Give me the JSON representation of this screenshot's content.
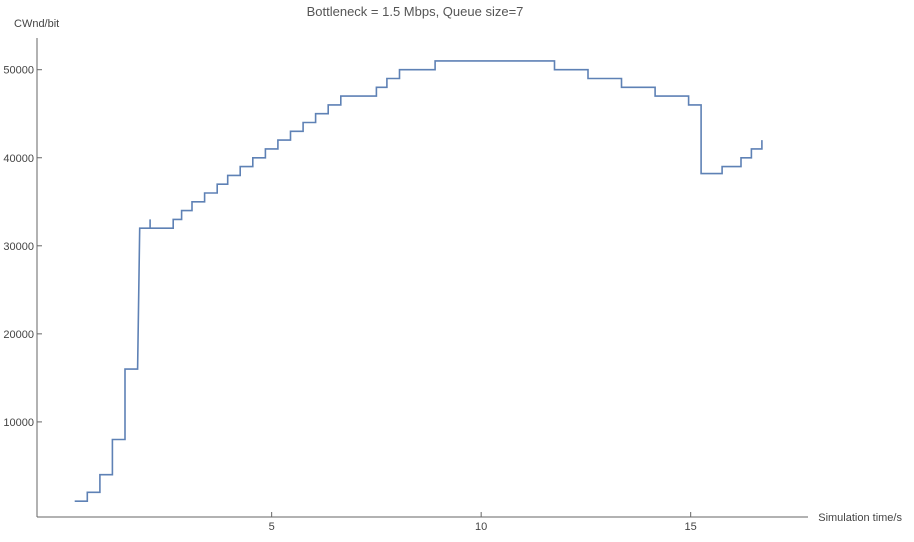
{
  "chart_data": {
    "type": "line",
    "title": "Bottleneck = 1.5 Mbps, Queue size=7",
    "xlabel": "Simulation time/s",
    "ylabel": "CWnd/bit",
    "xlim": [
      -0.6,
      17.8
    ],
    "ylim": [
      -800,
      53600
    ],
    "x_ticks": [
      5,
      10,
      15
    ],
    "y_ticks": [
      10000,
      20000,
      30000,
      40000,
      50000
    ],
    "x_tick_labels": [
      "5",
      "10",
      "15"
    ],
    "y_tick_labels": [
      "10000",
      "20000",
      "30000",
      "40000",
      "50000"
    ],
    "grid": false,
    "line_style": "step",
    "series": [
      {
        "color": "#5e81b5",
        "points": [
          [
            0.3,
            1000
          ],
          [
            0.6,
            1000
          ],
          [
            0.6,
            2000
          ],
          [
            0.9,
            2000
          ],
          [
            0.9,
            4000
          ],
          [
            1.2,
            4000
          ],
          [
            1.2,
            8000
          ],
          [
            1.5,
            8000
          ],
          [
            1.5,
            16000
          ],
          [
            1.8,
            16000
          ],
          [
            1.85,
            32000
          ],
          [
            2.1,
            32000
          ],
          [
            2.1,
            33000
          ],
          [
            2.1,
            32000
          ],
          [
            2.65,
            32000
          ],
          [
            2.65,
            33000
          ],
          [
            2.85,
            33000
          ],
          [
            2.85,
            34000
          ],
          [
            3.1,
            34000
          ],
          [
            3.1,
            35000
          ],
          [
            3.4,
            35000
          ],
          [
            3.4,
            36000
          ],
          [
            3.7,
            36000
          ],
          [
            3.7,
            37000
          ],
          [
            3.95,
            37000
          ],
          [
            3.95,
            38000
          ],
          [
            4.25,
            38000
          ],
          [
            4.25,
            39000
          ],
          [
            4.55,
            39000
          ],
          [
            4.55,
            40000
          ],
          [
            4.85,
            40000
          ],
          [
            4.85,
            41000
          ],
          [
            5.15,
            41000
          ],
          [
            5.15,
            42000
          ],
          [
            5.45,
            42000
          ],
          [
            5.45,
            43000
          ],
          [
            5.75,
            43000
          ],
          [
            5.75,
            44000
          ],
          [
            6.05,
            44000
          ],
          [
            6.05,
            45000
          ],
          [
            6.35,
            45000
          ],
          [
            6.35,
            46000
          ],
          [
            6.65,
            46000
          ],
          [
            6.65,
            47000
          ],
          [
            7.5,
            47000
          ],
          [
            7.5,
            48000
          ],
          [
            7.75,
            48000
          ],
          [
            7.75,
            49000
          ],
          [
            8.05,
            49000
          ],
          [
            8.05,
            50000
          ],
          [
            8.9,
            50000
          ],
          [
            8.9,
            51000
          ],
          [
            11.75,
            51000
          ],
          [
            11.75,
            50000
          ],
          [
            12.55,
            50000
          ],
          [
            12.55,
            49000
          ],
          [
            13.35,
            49000
          ],
          [
            13.35,
            48000
          ],
          [
            14.15,
            48000
          ],
          [
            14.15,
            47000
          ],
          [
            14.95,
            47000
          ],
          [
            14.95,
            46000
          ],
          [
            15.25,
            46000
          ],
          [
            15.25,
            38200
          ],
          [
            15.75,
            38200
          ],
          [
            15.75,
            39000
          ],
          [
            16.2,
            39000
          ],
          [
            16.2,
            40000
          ],
          [
            16.45,
            40000
          ],
          [
            16.45,
            41000
          ],
          [
            16.7,
            41000
          ],
          [
            16.7,
            42000
          ]
        ]
      }
    ]
  }
}
